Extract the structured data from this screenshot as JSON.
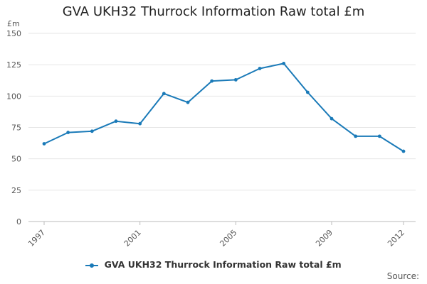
{
  "chart_data": {
    "type": "line",
    "title": "GVA UKH32 Thurrock Information Raw total £m",
    "ylabel": "£m",
    "xlabel": "",
    "ylim": [
      0,
      150
    ],
    "yticks": [
      0,
      25,
      50,
      75,
      100,
      125,
      150
    ],
    "xticks": [
      "1997",
      "2001",
      "2005",
      "2009",
      "2012"
    ],
    "grid": true,
    "legend": "bottom",
    "x": [
      "1997",
      "1998",
      "1999",
      "2000",
      "2001",
      "2002",
      "2003",
      "2004",
      "2005",
      "2006",
      "2007",
      "2008",
      "2009",
      "2010",
      "2011",
      "2012"
    ],
    "series": [
      {
        "name": "GVA UKH32 Thurrock Information Raw total £m",
        "color": "#1a7ab8",
        "values": [
          62,
          71,
          72,
          80,
          78,
          102,
          95,
          112,
          113,
          122,
          126,
          103,
          82,
          68,
          68,
          56
        ]
      }
    ],
    "source_label": "Source:"
  }
}
